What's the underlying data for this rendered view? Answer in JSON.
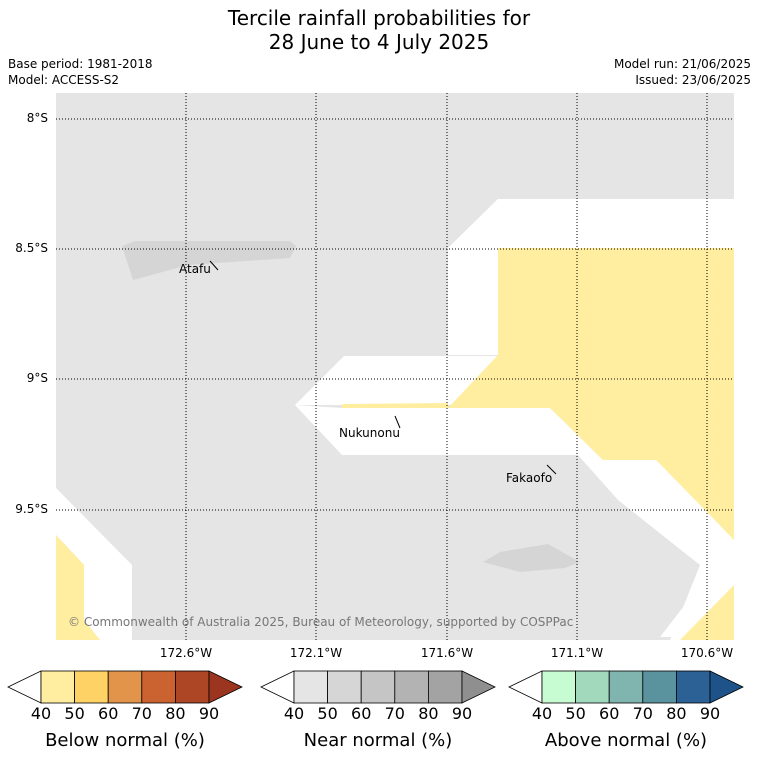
{
  "title": {
    "line1": "Tercile rainfall probabilities for",
    "line2": "28 June to 4 July 2025"
  },
  "meta": {
    "base_period": "Base period: 1981-2018",
    "model": "Model: ACCESS-S2",
    "model_run": "Model run: 21/06/2025",
    "issued": "Issued: 23/06/2025"
  },
  "map": {
    "latitude_labels": [
      "8°S",
      "8.5°S",
      "9°S",
      "9.5°S"
    ],
    "longitude_labels": [
      "172.6°W",
      "172.1°W",
      "171.6°W",
      "171.1°W",
      "170.6°W"
    ],
    "places": {
      "atafu": "Atafu",
      "nukunonu": "Nukunonu",
      "fakaofo": "Fakaofo"
    },
    "copyright": "© Commonwealth of Australia 2025, Bureau of Meteorology, supported by COSPPac",
    "colors": {
      "near_normal_fill": "#e5e5e5",
      "atoll_fill": "#d5d5d5",
      "below_normal_40_50": "#ffeda0",
      "no_dominant": "#ffffff"
    }
  },
  "colorbars": {
    "ticks": [
      "40",
      "50",
      "60",
      "70",
      "80",
      "90"
    ],
    "below": {
      "label": "Below normal (%)",
      "colors": [
        "#ffffff",
        "#ffeda0",
        "#fed265",
        "#e2944a",
        "#cb6330",
        "#ad4625",
        "#9c3520"
      ]
    },
    "near": {
      "label": "Near normal (%)",
      "colors": [
        "#ffffff",
        "#e5e5e5",
        "#d6d6d6",
        "#c5c5c5",
        "#b3b3b3",
        "#a3a3a3",
        "#8f8f8f"
      ]
    },
    "above": {
      "label": "Above normal (%)",
      "colors": [
        "#ffffff",
        "#c7fbd1",
        "#a2d9bd",
        "#7fb5ae",
        "#5a929d",
        "#2b6195",
        "#1d5389"
      ]
    }
  }
}
